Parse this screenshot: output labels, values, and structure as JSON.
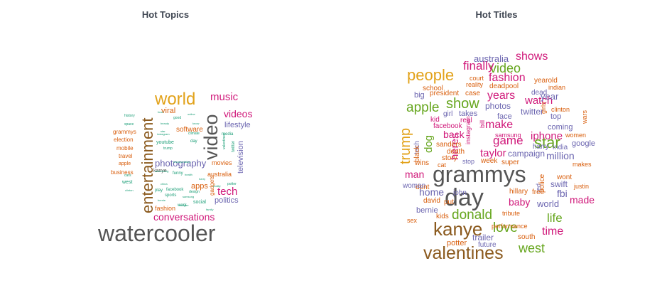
{
  "panels": [
    {
      "title": "Hot Topics",
      "words": [
        {
          "t": "watercooler",
          "c": "#555555"
        },
        {
          "t": "entertainment",
          "c": "#8b5a1e"
        },
        {
          "t": "world",
          "c": "#e2a21a"
        },
        {
          "t": "video",
          "c": "#555555"
        },
        {
          "t": "music",
          "c": "#d0197a"
        },
        {
          "t": "videos",
          "c": "#d0197a"
        },
        {
          "t": "lifestyle",
          "c": "#6c66b0"
        },
        {
          "t": "television",
          "c": "#6c66b0"
        },
        {
          "t": "tech",
          "c": "#d0197a"
        },
        {
          "t": "politics",
          "c": "#6c66b0"
        },
        {
          "t": "conversations",
          "c": "#d0197a"
        },
        {
          "t": "photography",
          "c": "#6c66b0"
        },
        {
          "t": "software",
          "c": "#d95f0e"
        },
        {
          "t": "viral",
          "c": "#d95f0e"
        },
        {
          "t": "apps",
          "c": "#d95f0e"
        },
        {
          "t": "movies",
          "c": "#d95f0e"
        },
        {
          "t": "australia",
          "c": "#d95f0e"
        },
        {
          "t": "fashion",
          "c": "#d95f0e"
        },
        {
          "t": "grammys",
          "c": "#d95f0e"
        },
        {
          "t": "election",
          "c": "#d95f0e"
        },
        {
          "t": "mobile",
          "c": "#d95f0e"
        },
        {
          "t": "travel",
          "c": "#d95f0e"
        },
        {
          "t": "apple",
          "c": "#d95f0e"
        },
        {
          "t": "business",
          "c": "#d95f0e"
        },
        {
          "t": "west",
          "c": "#1b9e77"
        },
        {
          "t": "youtube",
          "c": "#1b9e77"
        },
        {
          "t": "food",
          "c": "#1b9e77"
        },
        {
          "t": "kanye",
          "c": "#555555"
        },
        {
          "t": "gadgets",
          "c": "#d95f0e"
        },
        {
          "t": "play",
          "c": "#1b9e77"
        },
        {
          "t": "facebook",
          "c": "#1b9e77"
        },
        {
          "t": "sports",
          "c": "#1b9e77"
        },
        {
          "t": "twitter",
          "c": "#1b9e77"
        },
        {
          "t": "media",
          "c": "#1b9e77"
        },
        {
          "t": "social",
          "c": "#1b9e77"
        },
        {
          "t": "work",
          "c": "#1b9e77"
        },
        {
          "t": "history",
          "c": "#1b9e77"
        },
        {
          "t": "space",
          "c": "#1b9e77"
        },
        {
          "t": "cars",
          "c": "#1b9e77"
        },
        {
          "t": "clinton",
          "c": "#1b9e77"
        },
        {
          "t": "good",
          "c": "#1b9e77"
        },
        {
          "t": "beauty",
          "c": "#1b9e77"
        },
        {
          "t": "trump",
          "c": "#1b9e77"
        },
        {
          "t": "design",
          "c": "#1b9e77"
        },
        {
          "t": "samsung",
          "c": "#1b9e77"
        },
        {
          "t": "bernie",
          "c": "#1b9e77"
        },
        {
          "t": "funny",
          "c": "#1b9e77"
        },
        {
          "t": "advertising",
          "c": "#1b9e77"
        },
        {
          "t": "china",
          "c": "#1b9e77"
        },
        {
          "t": "climate",
          "c": "#1b9e77"
        },
        {
          "t": "star",
          "c": "#1b9e77"
        },
        {
          "t": "instagram",
          "c": "#1b9e77"
        },
        {
          "t": "day",
          "c": "#1b9e77"
        },
        {
          "t": "potter",
          "c": "#1b9e77"
        },
        {
          "t": "health",
          "c": "#1b9e77"
        },
        {
          "t": "online",
          "c": "#1b9e77"
        },
        {
          "t": "know",
          "c": "#1b9e77"
        },
        {
          "t": "family",
          "c": "#1b9e77"
        },
        {
          "t": "refugee",
          "c": "#1b9e77"
        },
        {
          "t": "reality",
          "c": "#1b9e77"
        },
        {
          "t": "harry",
          "c": "#1b9e77"
        },
        {
          "t": "valentines",
          "c": "#1b9e77"
        },
        {
          "t": "transportation",
          "c": "#1b9e77"
        }
      ]
    },
    {
      "title": "Hot Titles",
      "words": [
        {
          "t": "grammys",
          "c": "#555555"
        },
        {
          "t": "day",
          "c": "#555555"
        },
        {
          "t": "kanye",
          "c": "#8b5a1e"
        },
        {
          "t": "valentines",
          "c": "#8b5a1e"
        },
        {
          "t": "people",
          "c": "#e2a21a"
        },
        {
          "t": "trump",
          "c": "#e2a21a"
        },
        {
          "t": "video",
          "c": "#66a61e"
        },
        {
          "t": "shows",
          "c": "#d0197a"
        },
        {
          "t": "australia",
          "c": "#6c66b0"
        },
        {
          "t": "finally",
          "c": "#d0197a"
        },
        {
          "t": "fashion",
          "c": "#d0197a"
        },
        {
          "t": "apple",
          "c": "#66a61e"
        },
        {
          "t": "show",
          "c": "#66a61e"
        },
        {
          "t": "years",
          "c": "#d0197a"
        },
        {
          "t": "watch",
          "c": "#d0197a"
        },
        {
          "t": "year",
          "c": "#6c66b0"
        },
        {
          "t": "dog",
          "c": "#66a61e"
        },
        {
          "t": "heres",
          "c": "#d0197a"
        },
        {
          "t": "make",
          "c": "#d0197a"
        },
        {
          "t": "star",
          "c": "#66a61e"
        },
        {
          "t": "game",
          "c": "#d0197a"
        },
        {
          "t": "iphone",
          "c": "#d0197a"
        },
        {
          "t": "taylor",
          "c": "#d0197a"
        },
        {
          "t": "donald",
          "c": "#66a61e"
        },
        {
          "t": "love",
          "c": "#66a61e"
        },
        {
          "t": "life",
          "c": "#66a61e"
        },
        {
          "t": "baby",
          "c": "#d0197a"
        },
        {
          "t": "time",
          "c": "#d0197a"
        },
        {
          "t": "west",
          "c": "#66a61e"
        },
        {
          "t": "made",
          "c": "#d0197a"
        },
        {
          "t": "home",
          "c": "#6c66b0"
        },
        {
          "t": "man",
          "c": "#d0197a"
        },
        {
          "t": "million",
          "c": "#6c66b0"
        },
        {
          "t": "fbi",
          "c": "#6c66b0"
        },
        {
          "t": "world",
          "c": "#6c66b0"
        },
        {
          "t": "photos",
          "c": "#6c66b0"
        },
        {
          "t": "twitter",
          "c": "#6c66b0"
        },
        {
          "t": "back",
          "c": "#d0197a"
        },
        {
          "t": "swift",
          "c": "#6c66b0"
        },
        {
          "t": "trailer",
          "c": "#6c66b0"
        },
        {
          "t": "tech",
          "c": "#6c66b0"
        },
        {
          "t": "bernie",
          "c": "#6c66b0"
        },
        {
          "t": "face",
          "c": "#6c66b0"
        },
        {
          "t": "top",
          "c": "#6c66b0"
        },
        {
          "t": "coming",
          "c": "#6c66b0"
        },
        {
          "t": "campaign",
          "c": "#6c66b0"
        },
        {
          "t": "google",
          "c": "#6c66b0"
        },
        {
          "t": "big",
          "c": "#6c66b0"
        },
        {
          "t": "dead",
          "c": "#6c66b0"
        },
        {
          "t": "yearold",
          "c": "#d95f0e"
        },
        {
          "t": "deadpool",
          "c": "#d95f0e"
        },
        {
          "t": "school",
          "c": "#d95f0e"
        },
        {
          "t": "president",
          "c": "#d95f0e"
        },
        {
          "t": "case",
          "c": "#d95f0e"
        },
        {
          "t": "court",
          "c": "#d95f0e"
        },
        {
          "t": "reality",
          "c": "#d95f0e"
        },
        {
          "t": "indian",
          "c": "#d95f0e"
        },
        {
          "t": "clinton",
          "c": "#d95f0e"
        },
        {
          "t": "women",
          "c": "#d95f0e"
        },
        {
          "t": "wars",
          "c": "#d95f0e"
        },
        {
          "t": "makes",
          "c": "#d95f0e"
        },
        {
          "t": "justin",
          "c": "#d95f0e"
        },
        {
          "t": "wont",
          "c": "#d95f0e"
        },
        {
          "t": "india",
          "c": "#6c66b0"
        },
        {
          "t": "harry",
          "c": "#6c66b0"
        },
        {
          "t": "girls",
          "c": "#d95f0e"
        },
        {
          "t": "kid",
          "c": "#d0197a"
        },
        {
          "t": "girl",
          "c": "#6c66b0"
        },
        {
          "t": "takes",
          "c": "#6c66b0"
        },
        {
          "t": "real",
          "c": "#d0197a"
        },
        {
          "t": "facebook",
          "c": "#d0197a"
        },
        {
          "t": "instagram",
          "c": "#d0197a"
        },
        {
          "t": "samsung",
          "c": "#d0197a"
        },
        {
          "t": "bill",
          "c": "#d0197a"
        },
        {
          "t": "sanders",
          "c": "#d95f0e"
        },
        {
          "t": "death",
          "c": "#d95f0e"
        },
        {
          "t": "black",
          "c": "#d95f0e"
        },
        {
          "t": "story",
          "c": "#d95f0e"
        },
        {
          "t": "stop",
          "c": "#6c66b0"
        },
        {
          "t": "week",
          "c": "#d95f0e"
        },
        {
          "t": "super",
          "c": "#d95f0e"
        },
        {
          "t": "wins",
          "c": "#d95f0e"
        },
        {
          "t": "cat",
          "c": "#d95f0e"
        },
        {
          "t": "dont",
          "c": "#d95f0e"
        },
        {
          "t": "woman",
          "c": "#6c66b0"
        },
        {
          "t": "red",
          "c": "#6c66b0"
        },
        {
          "t": "police",
          "c": "#d95f0e"
        },
        {
          "t": "hillary",
          "c": "#d95f0e"
        },
        {
          "t": "free",
          "c": "#d95f0e"
        },
        {
          "t": "john",
          "c": "#6c66b0"
        },
        {
          "t": "put",
          "c": "#d95f0e"
        },
        {
          "t": "david",
          "c": "#d95f0e"
        },
        {
          "t": "kids",
          "c": "#d95f0e"
        },
        {
          "t": "sex",
          "c": "#d95f0e"
        },
        {
          "t": "tribute",
          "c": "#d95f0e"
        },
        {
          "t": "performance",
          "c": "#d95f0e"
        },
        {
          "t": "south",
          "c": "#d95f0e"
        },
        {
          "t": "potter",
          "c": "#d95f0e"
        },
        {
          "t": "future",
          "c": "#6c66b0"
        },
        {
          "t": "worlds",
          "c": "#d95f0e"
        }
      ]
    }
  ]
}
